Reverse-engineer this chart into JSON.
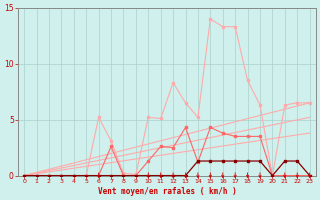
{
  "bg_color": "#cff0ec",
  "grid_color": "#aacfcc",
  "xlabel": "Vent moyen/en rafales ( km/h )",
  "xlabel_color": "#cc0000",
  "tick_color": "#cc0000",
  "xlim": [
    -0.5,
    23.5
  ],
  "ylim": [
    0,
    15
  ],
  "yticks": [
    0,
    5,
    10,
    15
  ],
  "xticks": [
    0,
    1,
    2,
    3,
    4,
    5,
    6,
    7,
    8,
    9,
    10,
    11,
    12,
    13,
    14,
    15,
    16,
    17,
    18,
    19,
    20,
    21,
    22,
    23
  ],
  "light_line_x": [
    0,
    1,
    2,
    3,
    4,
    5,
    6,
    7,
    8,
    9,
    10,
    11,
    12,
    13,
    14,
    15,
    16,
    17,
    18,
    19,
    20,
    21,
    22,
    23
  ],
  "light_line_y": [
    0,
    0,
    0,
    0,
    0,
    0,
    5.2,
    3.1,
    0.2,
    0.1,
    5.2,
    5.1,
    8.3,
    6.5,
    5.2,
    14.0,
    13.3,
    13.3,
    8.5,
    6.3,
    0.0,
    6.3,
    6.5,
    6.5
  ],
  "light_line_color": "#ffaaaa",
  "med_line_x": [
    0,
    1,
    2,
    3,
    4,
    5,
    6,
    7,
    8,
    9,
    10,
    11,
    12,
    13,
    14,
    15,
    16,
    17,
    18,
    19,
    20,
    21,
    22,
    23
  ],
  "med_line_y": [
    0,
    0,
    0,
    0,
    0,
    0,
    0,
    2.6,
    0,
    0,
    1.3,
    2.6,
    2.5,
    4.3,
    1.2,
    4.3,
    3.8,
    3.5,
    3.5,
    3.5,
    0,
    0,
    0,
    0
  ],
  "med_line_color": "#ff6666",
  "trend1_x": [
    0,
    23
  ],
  "trend1_y": [
    0,
    6.5
  ],
  "trend1_color": "#ffaaaa",
  "trend2_x": [
    0,
    23
  ],
  "trend2_y": [
    0,
    5.2
  ],
  "trend2_color": "#ffaaaa",
  "trend3_x": [
    0,
    23
  ],
  "trend3_y": [
    0,
    3.8
  ],
  "trend3_color": "#ffaaaa",
  "dark_line_x": [
    0,
    1,
    2,
    3,
    4,
    5,
    6,
    7,
    8,
    9,
    10,
    11,
    12,
    13,
    14,
    15,
    16,
    17,
    18,
    19,
    20,
    21,
    22,
    23
  ],
  "dark_line_y": [
    0,
    0,
    0,
    0,
    0,
    0,
    0,
    0,
    0,
    0,
    0,
    0,
    0,
    0,
    1.3,
    1.3,
    1.3,
    1.3,
    1.3,
    1.3,
    0,
    1.3,
    1.3,
    0
  ],
  "dark_line_color": "#880000",
  "arrows_x": [
    6,
    10,
    11,
    12,
    13,
    14,
    15,
    16,
    17,
    18,
    19,
    21,
    22,
    23
  ],
  "arrow_color": "#cc0000"
}
